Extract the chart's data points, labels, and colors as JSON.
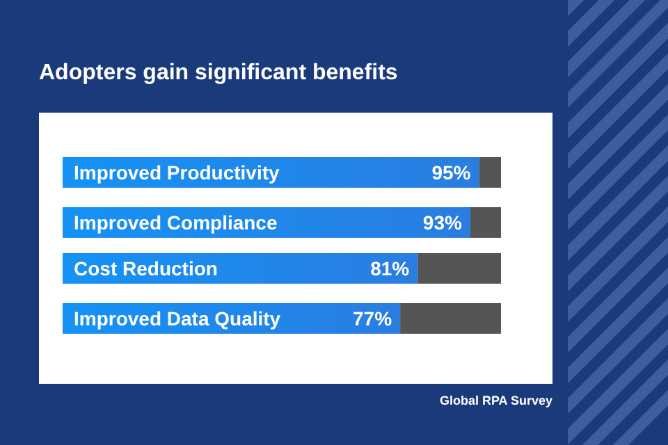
{
  "chart_data": {
    "type": "bar",
    "orientation": "horizontal",
    "stacked": true,
    "title": "Adopters gain significant benefits",
    "categories": [
      "Improved Productivity",
      "Improved Compliance",
      "Cost Reduction",
      "Improved Data Quality"
    ],
    "xlim": [
      0,
      100
    ],
    "series": [
      {
        "color": "#2a7de0",
        "values": [
          95,
          93,
          81,
          77
        ],
        "value_labels": [
          "95%",
          "93%",
          "81%",
          "77%"
        ]
      },
      {
        "color": "#555555",
        "values": [
          5,
          7,
          19,
          23
        ]
      }
    ],
    "annotations": [
      "Global RPA Survey"
    ]
  }
}
